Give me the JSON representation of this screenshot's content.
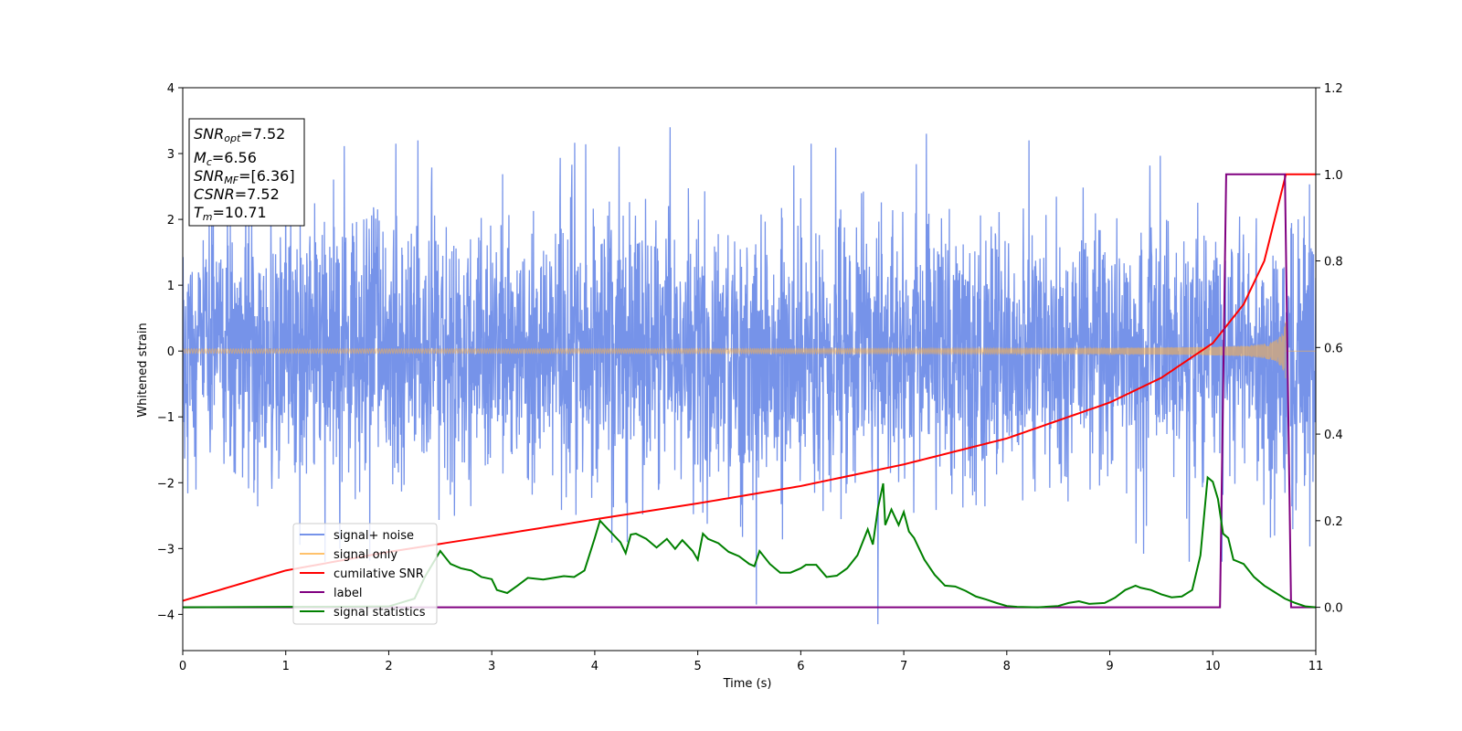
{
  "chart_data": {
    "type": "line",
    "xlabel": "Time (s)",
    "ylabel": "Whitened strain",
    "xlim": [
      0,
      11
    ],
    "ylim_left": [
      -4.55,
      4.0
    ],
    "ylim_right": [
      -0.1,
      1.2
    ],
    "x_ticks": [
      "0",
      "1",
      "2",
      "3",
      "4",
      "5",
      "6",
      "7",
      "8",
      "9",
      "10",
      "11"
    ],
    "y_ticks_left": [
      "4",
      "3",
      "2",
      "1",
      "0",
      "−1",
      "−2",
      "−3",
      "−4"
    ],
    "y_ticks_right": [
      "1.2",
      "1.0",
      "0.8",
      "0.6",
      "0.4",
      "0.2",
      "0.0"
    ],
    "legend_position": "lower-left",
    "stats_box": {
      "snr_opt": {
        "sym": "SNR",
        "sub": "opt",
        "value": "=7.52"
      },
      "mc": {
        "sym": "M",
        "sub": "c",
        "value": "=6.56"
      },
      "snr_mf": {
        "sym": "SNR",
        "sub": "MF",
        "value": "=[6.36]"
      },
      "csnr": {
        "sym": "CSNR",
        "sub": "",
        "value": "=7.52"
      },
      "tm": {
        "sym": "T",
        "sub": "m",
        "value": "=10.71"
      }
    },
    "series": [
      {
        "name": "signal+ noise",
        "color": "#4169e1",
        "axis": "left",
        "description_values": "noise amplitude ~N(0,1), peaks up to 3.4 and down to -4.2",
        "noise_std": 1.0,
        "peaks": [
          [
            4.73,
            3.4
          ],
          [
            6.75,
            -4.15
          ],
          [
            5.57,
            -3.85
          ],
          [
            7.22,
            3.3
          ],
          [
            6.1,
            3.15
          ],
          [
            2.07,
            3.15
          ]
        ]
      },
      {
        "name": "signal only",
        "color": "#ffb347",
        "axis": "left",
        "chirp_end": 10.71,
        "amplitude_start": 0.03,
        "amplitude_end": 0.55
      },
      {
        "name": "cumilative SNR",
        "color": "#ff0000",
        "axis": "right",
        "x": [
          0,
          1,
          2,
          3,
          4,
          5,
          6,
          7,
          8,
          9,
          9.5,
          10,
          10.3,
          10.5,
          10.71,
          11
        ],
        "y": [
          0.015,
          0.085,
          0.128,
          0.165,
          0.203,
          0.24,
          0.28,
          0.33,
          0.39,
          0.473,
          0.53,
          0.61,
          0.7,
          0.8,
          1.0,
          1.0
        ]
      },
      {
        "name": "label",
        "color": "#800080",
        "axis": "right",
        "x": [
          0,
          10.07,
          10.13,
          10.7,
          10.76,
          11
        ],
        "y": [
          0,
          0,
          1,
          1,
          0,
          0
        ]
      },
      {
        "name": "signal statistics",
        "color": "#008000",
        "axis": "right",
        "x": [
          0,
          1,
          2,
          2.25,
          2.35,
          2.45,
          2.5,
          2.6,
          2.7,
          2.8,
          2.9,
          3.0,
          3.05,
          3.15,
          3.25,
          3.35,
          3.5,
          3.6,
          3.7,
          3.8,
          3.9,
          4.0,
          4.05,
          4.15,
          4.25,
          4.3,
          4.35,
          4.4,
          4.5,
          4.6,
          4.7,
          4.78,
          4.85,
          4.95,
          5.0,
          5.05,
          5.1,
          5.2,
          5.3,
          5.4,
          5.5,
          5.55,
          5.6,
          5.7,
          5.8,
          5.9,
          6.0,
          6.05,
          6.15,
          6.25,
          6.35,
          6.45,
          6.55,
          6.65,
          6.7,
          6.75,
          6.8,
          6.82,
          6.88,
          6.95,
          7.0,
          7.05,
          7.1,
          7.2,
          7.3,
          7.4,
          7.5,
          7.6,
          7.7,
          7.8,
          7.9,
          8.0,
          8.1,
          8.3,
          8.5,
          8.6,
          8.7,
          8.8,
          8.95,
          9.05,
          9.15,
          9.25,
          9.3,
          9.4,
          9.5,
          9.6,
          9.7,
          9.8,
          9.88,
          9.95,
          10.0,
          10.05,
          10.1,
          10.15,
          10.2,
          10.3,
          10.4,
          10.5,
          10.6,
          10.7,
          10.8,
          10.9,
          11
        ],
        "y": [
          0,
          0.001,
          0.002,
          0.02,
          0.07,
          0.11,
          0.13,
          0.1,
          0.09,
          0.085,
          0.07,
          0.065,
          0.04,
          0.033,
          0.05,
          0.068,
          0.064,
          0.068,
          0.072,
          0.07,
          0.085,
          0.16,
          0.2,
          0.175,
          0.15,
          0.125,
          0.168,
          0.17,
          0.158,
          0.138,
          0.158,
          0.135,
          0.155,
          0.13,
          0.11,
          0.17,
          0.158,
          0.148,
          0.128,
          0.118,
          0.1,
          0.095,
          0.13,
          0.1,
          0.08,
          0.08,
          0.09,
          0.098,
          0.098,
          0.07,
          0.073,
          0.09,
          0.12,
          0.18,
          0.145,
          0.23,
          0.286,
          0.19,
          0.226,
          0.19,
          0.22,
          0.175,
          0.16,
          0.11,
          0.075,
          0.05,
          0.048,
          0.038,
          0.025,
          0.018,
          0.01,
          0.003,
          0.001,
          0.0,
          0.003,
          0.01,
          0.014,
          0.008,
          0.01,
          0.022,
          0.04,
          0.05,
          0.045,
          0.04,
          0.03,
          0.023,
          0.025,
          0.04,
          0.12,
          0.3,
          0.29,
          0.25,
          0.17,
          0.16,
          0.11,
          0.1,
          0.07,
          0.05,
          0.035,
          0.02,
          0.01,
          0.002,
          0.0
        ]
      }
    ]
  }
}
